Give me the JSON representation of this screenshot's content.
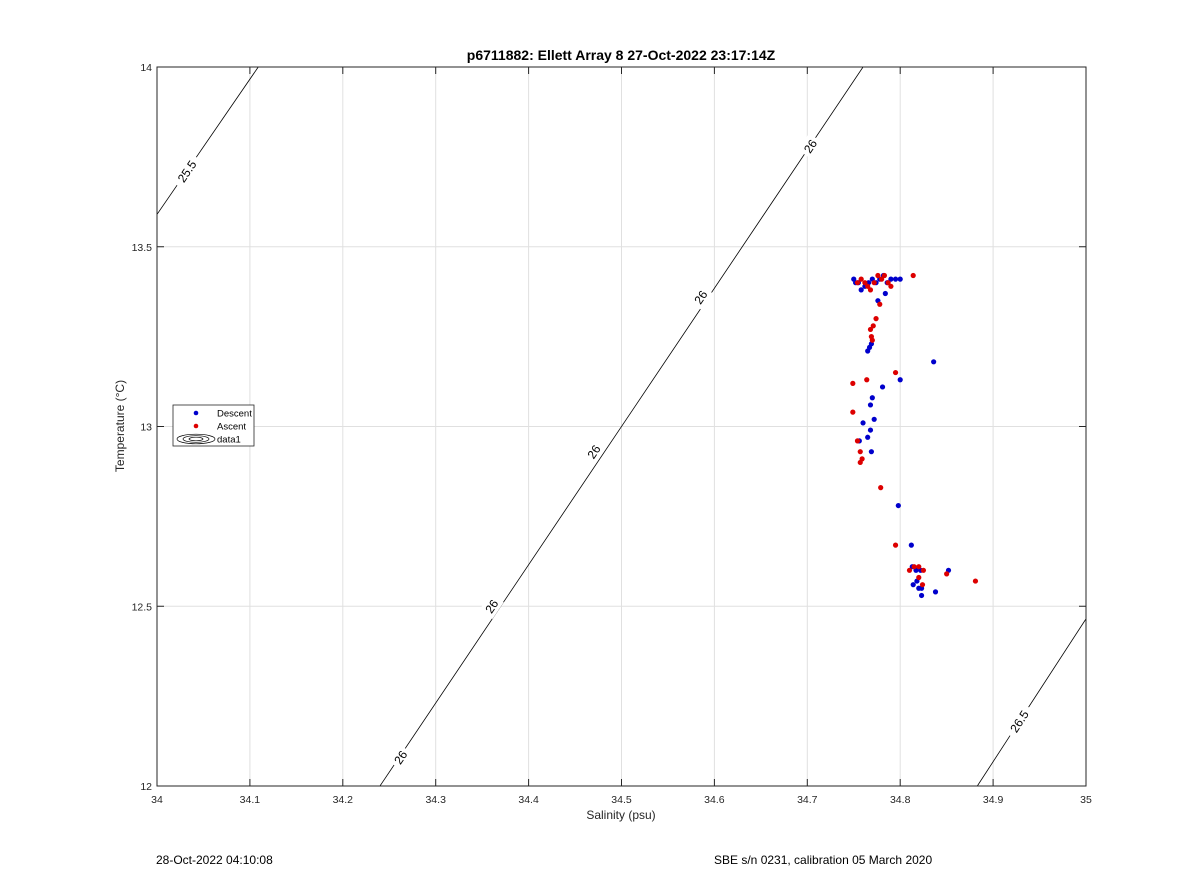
{
  "footer": {
    "timestamp": "28-Oct-2022 04:10:08",
    "calibration": "SBE s/n 0231, calibration 05 March 2020"
  },
  "chart_data": {
    "type": "scatter",
    "title": "p6711882: Ellett Array 8 27-Oct-2022 23:17:14Z",
    "xlabel": "Salinity (psu)",
    "ylabel": "Temperature (°C)",
    "xlim": [
      34,
      35
    ],
    "ylim": [
      12,
      14
    ],
    "xticks": [
      "34",
      "34.1",
      "34.2",
      "34.3",
      "34.4",
      "34.5",
      "34.6",
      "34.7",
      "34.8",
      "34.9",
      "35"
    ],
    "yticks": [
      "12",
      "12.5",
      "13",
      "13.5",
      "14"
    ],
    "grid": true,
    "legend": {
      "position": "left-middle",
      "entries": [
        "Descent",
        "Ascent",
        "data1"
      ]
    },
    "colors": {
      "descent": "#0000cc",
      "ascent": "#dd0000",
      "contour": "#000000",
      "grid": "#e0e0e0"
    },
    "contours": [
      {
        "label": "25.5",
        "points": [
          [
            34.0,
            13.59
          ],
          [
            34.109,
            14.0
          ]
        ],
        "label_at": [
          34.032,
          13.71
        ]
      },
      {
        "label": "26",
        "points": [
          [
            34.24,
            12.0
          ],
          [
            34.76,
            14.0
          ]
        ],
        "label_at": [
          [
            34.262,
            12.08
          ],
          [
            34.36,
            12.5
          ],
          [
            34.47,
            12.93
          ],
          [
            34.585,
            13.36
          ],
          [
            34.703,
            13.78
          ]
        ]
      },
      {
        "label": "26.5",
        "points": [
          [
            34.883,
            12.0
          ],
          [
            35.0,
            12.465
          ]
        ],
        "label_at": [
          34.928,
          12.18
        ]
      }
    ],
    "series": [
      {
        "name": "Descent",
        "points": [
          [
            34.75,
            13.41
          ],
          [
            34.752,
            13.4
          ],
          [
            34.755,
            13.4
          ],
          [
            34.758,
            13.38
          ],
          [
            34.762,
            13.39
          ],
          [
            34.766,
            13.4
          ],
          [
            34.77,
            13.41
          ],
          [
            34.774,
            13.4
          ],
          [
            34.778,
            13.41
          ],
          [
            34.782,
            13.42
          ],
          [
            34.786,
            13.4
          ],
          [
            34.79,
            13.41
          ],
          [
            34.795,
            13.41
          ],
          [
            34.8,
            13.41
          ],
          [
            34.784,
            13.37
          ],
          [
            34.776,
            13.35
          ],
          [
            34.767,
            13.22
          ],
          [
            34.769,
            13.23
          ],
          [
            34.765,
            13.21
          ],
          [
            34.836,
            13.18
          ],
          [
            34.8,
            13.13
          ],
          [
            34.781,
            13.11
          ],
          [
            34.77,
            13.08
          ],
          [
            34.768,
            13.06
          ],
          [
            34.772,
            13.02
          ],
          [
            34.76,
            13.01
          ],
          [
            34.768,
            12.99
          ],
          [
            34.765,
            12.97
          ],
          [
            34.756,
            12.96
          ],
          [
            34.769,
            12.93
          ],
          [
            34.798,
            12.78
          ],
          [
            34.812,
            12.67
          ],
          [
            34.813,
            12.61
          ],
          [
            34.817,
            12.6
          ],
          [
            34.822,
            12.6
          ],
          [
            34.852,
            12.6
          ],
          [
            34.818,
            12.57
          ],
          [
            34.814,
            12.56
          ],
          [
            34.82,
            12.55
          ],
          [
            34.823,
            12.55
          ],
          [
            34.838,
            12.54
          ],
          [
            34.823,
            12.53
          ]
        ]
      },
      {
        "name": "Ascent",
        "points": [
          [
            34.754,
            13.4
          ],
          [
            34.758,
            13.41
          ],
          [
            34.762,
            13.4
          ],
          [
            34.765,
            13.39
          ],
          [
            34.768,
            13.38
          ],
          [
            34.772,
            13.4
          ],
          [
            34.776,
            13.42
          ],
          [
            34.78,
            13.41
          ],
          [
            34.783,
            13.42
          ],
          [
            34.787,
            13.4
          ],
          [
            34.79,
            13.39
          ],
          [
            34.814,
            13.42
          ],
          [
            34.778,
            13.34
          ],
          [
            34.774,
            13.3
          ],
          [
            34.771,
            13.28
          ],
          [
            34.768,
            13.27
          ],
          [
            34.769,
            13.25
          ],
          [
            34.77,
            13.24
          ],
          [
            34.795,
            13.15
          ],
          [
            34.749,
            13.12
          ],
          [
            34.764,
            13.13
          ],
          [
            34.749,
            13.04
          ],
          [
            34.754,
            12.96
          ],
          [
            34.757,
            12.93
          ],
          [
            34.759,
            12.91
          ],
          [
            34.757,
            12.9
          ],
          [
            34.779,
            12.83
          ],
          [
            34.795,
            12.67
          ],
          [
            34.81,
            12.6
          ],
          [
            34.815,
            12.61
          ],
          [
            34.82,
            12.61
          ],
          [
            34.825,
            12.6
          ],
          [
            34.85,
            12.59
          ],
          [
            34.881,
            12.57
          ],
          [
            34.82,
            12.58
          ],
          [
            34.824,
            12.56
          ]
        ]
      }
    ]
  }
}
